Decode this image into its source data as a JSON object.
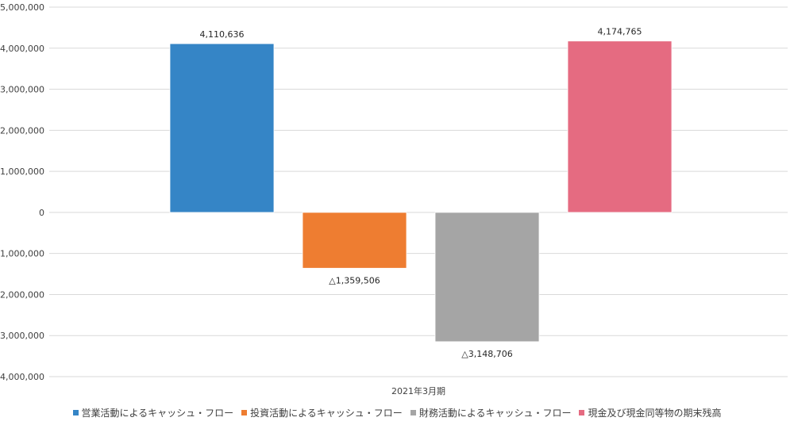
{
  "chart_data": {
    "type": "bar",
    "categories": [
      "2021年3月期"
    ],
    "series": [
      {
        "name": "営業活動によるキャッシュ・フロー",
        "value": 4110636,
        "label": "4,110,636",
        "color": "#3585C6"
      },
      {
        "name": "投資活動によるキャッシュ・フロー",
        "value": -1359506,
        "label": "△1,359,506",
        "color": "#EE7D31"
      },
      {
        "name": "財務活動によるキャッシュ・フロー",
        "value": -3148706,
        "label": "△3,148,706",
        "color": "#A5A5A5"
      },
      {
        "name": "現金及び現金同等物の期末残高",
        "value": 4174765,
        "label": "4,174,765",
        "color": "#E56B81"
      }
    ],
    "ylim": [
      -4000000,
      5000000
    ],
    "yticks": [
      {
        "value": 5000000,
        "label": "5,000,000"
      },
      {
        "value": 4000000,
        "label": "4,000,000"
      },
      {
        "value": 3000000,
        "label": "3,000,000"
      },
      {
        "value": 2000000,
        "label": "2,000,000"
      },
      {
        "value": 1000000,
        "label": "1,000,000"
      },
      {
        "value": 0,
        "label": "0"
      },
      {
        "value": -1000000,
        "label": "-1,000,000"
      },
      {
        "value": -2000000,
        "label": "-2,000,000"
      },
      {
        "value": -3000000,
        "label": "-3,000,000"
      },
      {
        "value": -4000000,
        "label": "-4,000,000"
      }
    ],
    "grid": true,
    "legend_position": "bottom",
    "gridline_color": "#D9D9D9"
  }
}
